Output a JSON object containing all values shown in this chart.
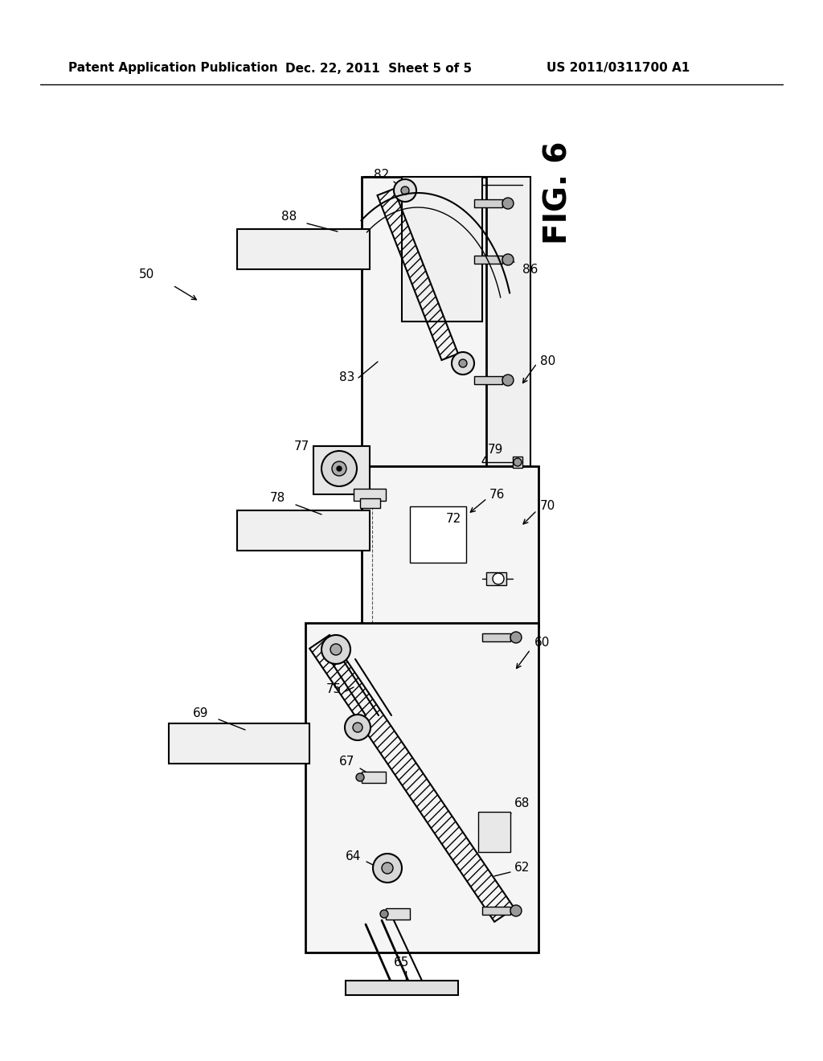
{
  "background_color": "#ffffff",
  "header_left": "Patent Application Publication",
  "header_center": "Dec. 22, 2011  Sheet 5 of 5",
  "header_right": "US 2011/0311700 A1",
  "fig_label": "FIG. 6",
  "header_fontsize": 11,
  "fig_label_fontsize": 28
}
